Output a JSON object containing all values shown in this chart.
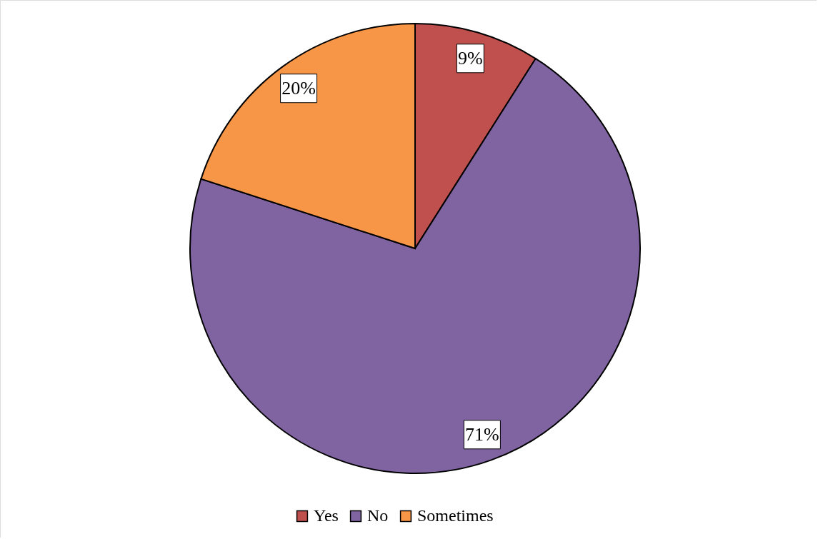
{
  "chart_data": {
    "type": "pie",
    "categories": [
      "Yes",
      "No",
      "Sometimes"
    ],
    "values": [
      9,
      71,
      20
    ],
    "colors": [
      "#c0504d",
      "#8064a2",
      "#f79646"
    ],
    "value_labels": [
      "9%",
      "71%",
      "20%"
    ],
    "legend": "bottom"
  }
}
